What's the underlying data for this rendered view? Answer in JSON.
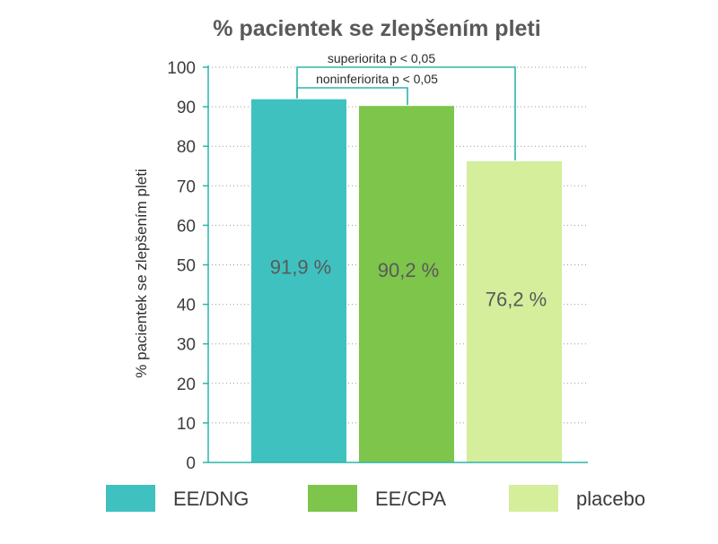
{
  "chart_data": {
    "type": "bar",
    "title": "% pacientek se zlepšením pleti",
    "xlabel": "",
    "ylabel": "% pacientek se zlepšením pleti",
    "ylim": [
      0,
      100
    ],
    "yticks": [
      0,
      10,
      20,
      30,
      40,
      50,
      60,
      70,
      80,
      90,
      100
    ],
    "grid": true,
    "categories": [
      "EE/DNG",
      "EE/CPA",
      "placebo"
    ],
    "values": [
      91.9,
      90.2,
      76.2
    ],
    "data_labels": [
      "91,9 %",
      "90,2 %",
      "76,2 %"
    ],
    "colors": [
      "#3fc1bf",
      "#7ec54b",
      "#d4ee9b"
    ],
    "bracket_color": "#2bb5a9",
    "legend": {
      "placement": "bottom",
      "entries": [
        "EE/DNG",
        "EE/CPA",
        "placebo"
      ]
    },
    "annotations": [
      {
        "text": "superiorita p < 0,05",
        "from": "EE/DNG",
        "to": "placebo"
      },
      {
        "text": "noninferiorita p < 0,05",
        "from": "EE/DNG",
        "to": "EE/CPA"
      }
    ]
  }
}
